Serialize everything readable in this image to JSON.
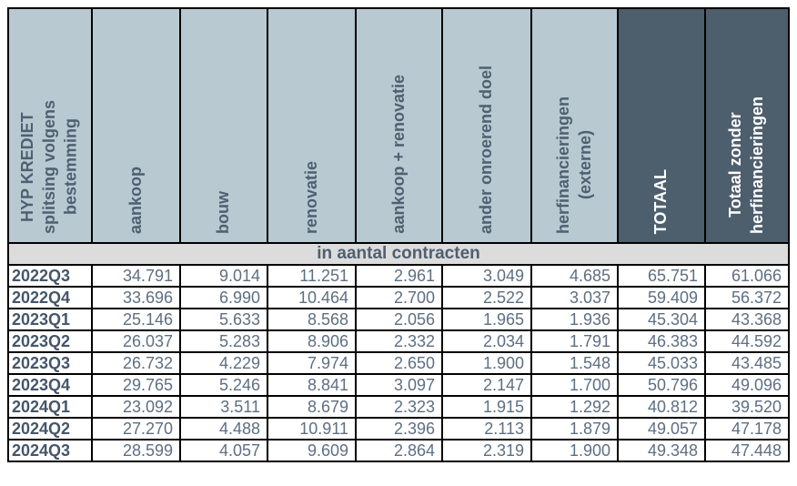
{
  "table": {
    "corner_label": "HYP KREDIET\nsplitsing volgens\nbestemming",
    "column_headers": [
      "aankoop",
      "bouw",
      "renovatie",
      "aankoop + renovatie",
      "ander onroerend doel",
      "herfinancieringen\n(externe)",
      "TOTAAL",
      "Totaal zonder\nherfinancieringen"
    ],
    "subheader": "in aantal contracten",
    "rows": [
      {
        "period": "2022Q3",
        "values": [
          "34.791",
          "9.014",
          "11.251",
          "2.961",
          "3.049",
          "4.685",
          "65.751",
          "61.066"
        ]
      },
      {
        "period": "2022Q4",
        "values": [
          "33.696",
          "6.990",
          "10.464",
          "2.700",
          "2.522",
          "3.037",
          "59.409",
          "56.372"
        ]
      },
      {
        "period": "2023Q1",
        "values": [
          "25.146",
          "5.633",
          "8.568",
          "2.056",
          "1.965",
          "1.936",
          "45.304",
          "43.368"
        ]
      },
      {
        "period": "2023Q2",
        "values": [
          "26.037",
          "5.283",
          "8.906",
          "2.332",
          "2.034",
          "1.791",
          "46.383",
          "44.592"
        ]
      },
      {
        "period": "2023Q3",
        "values": [
          "26.732",
          "4.229",
          "7.974",
          "2.650",
          "1.900",
          "1.548",
          "45.033",
          "43.485"
        ]
      },
      {
        "period": "2023Q4",
        "values": [
          "29.765",
          "5.246",
          "8.841",
          "3.097",
          "2.147",
          "1.700",
          "50.796",
          "49.096"
        ]
      },
      {
        "period": "2024Q1",
        "values": [
          "23.092",
          "3.511",
          "8.679",
          "2.323",
          "1.915",
          "1.292",
          "40.812",
          "39.520"
        ]
      },
      {
        "period": "2024Q2",
        "values": [
          "27.270",
          "4.488",
          "10.911",
          "2.396",
          "2.113",
          "1.879",
          "49.057",
          "47.178"
        ]
      },
      {
        "period": "2024Q3",
        "values": [
          "28.599",
          "4.057",
          "9.609",
          "2.864",
          "2.319",
          "1.900",
          "49.348",
          "47.448"
        ]
      }
    ],
    "colors": {
      "header_light_bg": "#b8c9d1",
      "header_dark_bg": "#4d5e6d",
      "subheader_bg": "#dcdcdc",
      "header_text": "#4e6071",
      "header_text_on_dark": "#ffffff",
      "row_label_text": "#455669",
      "number_text": "#5d6f82",
      "border": "#000000"
    }
  },
  "chart_data": {
    "type": "table",
    "title": "HYP KREDIET splitsing volgens bestemming",
    "unit_note": "in aantal contracten",
    "columns": [
      "aankoop",
      "bouw",
      "renovatie",
      "aankoop + renovatie",
      "ander onroerend doel",
      "herfinancieringen (externe)",
      "TOTAAL",
      "Totaal zonder herfinancieringen"
    ],
    "row_labels": [
      "2022Q3",
      "2022Q4",
      "2023Q1",
      "2023Q2",
      "2023Q3",
      "2023Q4",
      "2024Q1",
      "2024Q2",
      "2024Q3"
    ],
    "values": [
      [
        34791,
        9014,
        11251,
        2961,
        3049,
        4685,
        65751,
        61066
      ],
      [
        33696,
        6990,
        10464,
        2700,
        2522,
        3037,
        59409,
        56372
      ],
      [
        25146,
        5633,
        8568,
        2056,
        1965,
        1936,
        45304,
        43368
      ],
      [
        26037,
        5283,
        8906,
        2332,
        2034,
        1791,
        46383,
        44592
      ],
      [
        26732,
        4229,
        7974,
        2650,
        1900,
        1548,
        45033,
        43485
      ],
      [
        29765,
        5246,
        8841,
        3097,
        2147,
        1700,
        50796,
        49096
      ],
      [
        23092,
        3511,
        8679,
        2323,
        1915,
        1292,
        40812,
        39520
      ],
      [
        27270,
        4488,
        10911,
        2396,
        2113,
        1879,
        49057,
        47178
      ],
      [
        28599,
        4057,
        9609,
        2864,
        2319,
        1900,
        49348,
        47448
      ]
    ]
  }
}
